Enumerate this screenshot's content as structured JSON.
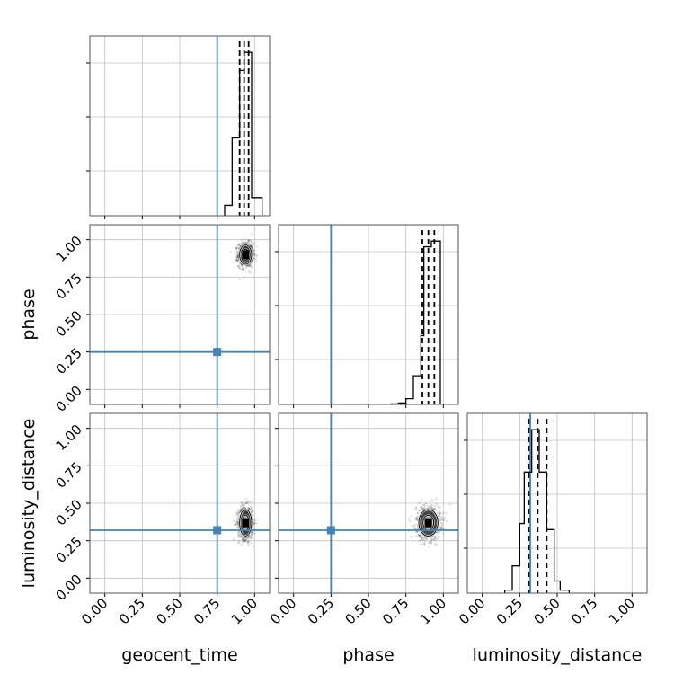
{
  "chart_data": {
    "type": "corner",
    "parameters": [
      "geocent_time",
      "phase",
      "luminosity_distance"
    ],
    "axis_range": [
      -0.1,
      1.1
    ],
    "ticks": [
      0.0,
      0.25,
      0.5,
      0.75,
      1.0
    ],
    "tick_labels": [
      "0.00",
      "0.25",
      "0.50",
      "0.75",
      "1.00"
    ],
    "grid": true,
    "colors": {
      "truth": "#4682b4",
      "hist": "#000000",
      "scatter": "#000000",
      "contour": "#ffffff",
      "grid": "#c0c0c0"
    },
    "truths": {
      "geocent_time": 0.75,
      "phase": 0.25,
      "luminosity_distance": 0.32
    },
    "quantiles": {
      "geocent_time": [
        0.9,
        0.93,
        0.96
      ],
      "phase": [
        0.86,
        0.9,
        0.94
      ],
      "luminosity_distance": [
        0.31,
        0.37,
        0.43
      ]
    },
    "histograms": {
      "geocent_time": {
        "bin_edges": [
          0.8,
          0.85,
          0.9,
          0.93,
          0.98,
          1.05
        ],
        "counts": [
          0.4,
          3.0,
          5.6,
          6.3,
          0.7
        ]
      },
      "phase": {
        "bin_edges": [
          0.55,
          0.6,
          0.65,
          0.7,
          0.75,
          0.8,
          0.85,
          0.87,
          0.92,
          0.98
        ],
        "counts": [
          0.0,
          0.0,
          0.02,
          0.05,
          0.2,
          1.0,
          2.4,
          5.5,
          5.7
        ]
      },
      "luminosity_distance": {
        "bin_edges": [
          0.15,
          0.2,
          0.25,
          0.28,
          0.33,
          0.38,
          0.43,
          0.48,
          0.52,
          0.58
        ],
        "counts": [
          0.05,
          0.45,
          1.15,
          2.0,
          2.7,
          2.0,
          1.05,
          0.2,
          0.05
        ]
      }
    },
    "posterior_center": {
      "geocent_time": 0.94,
      "phase": 0.9,
      "luminosity_distance": 0.37
    },
    "posterior_spread": {
      "geocent_time": 0.025,
      "phase": 0.04,
      "luminosity_distance": 0.055
    }
  }
}
